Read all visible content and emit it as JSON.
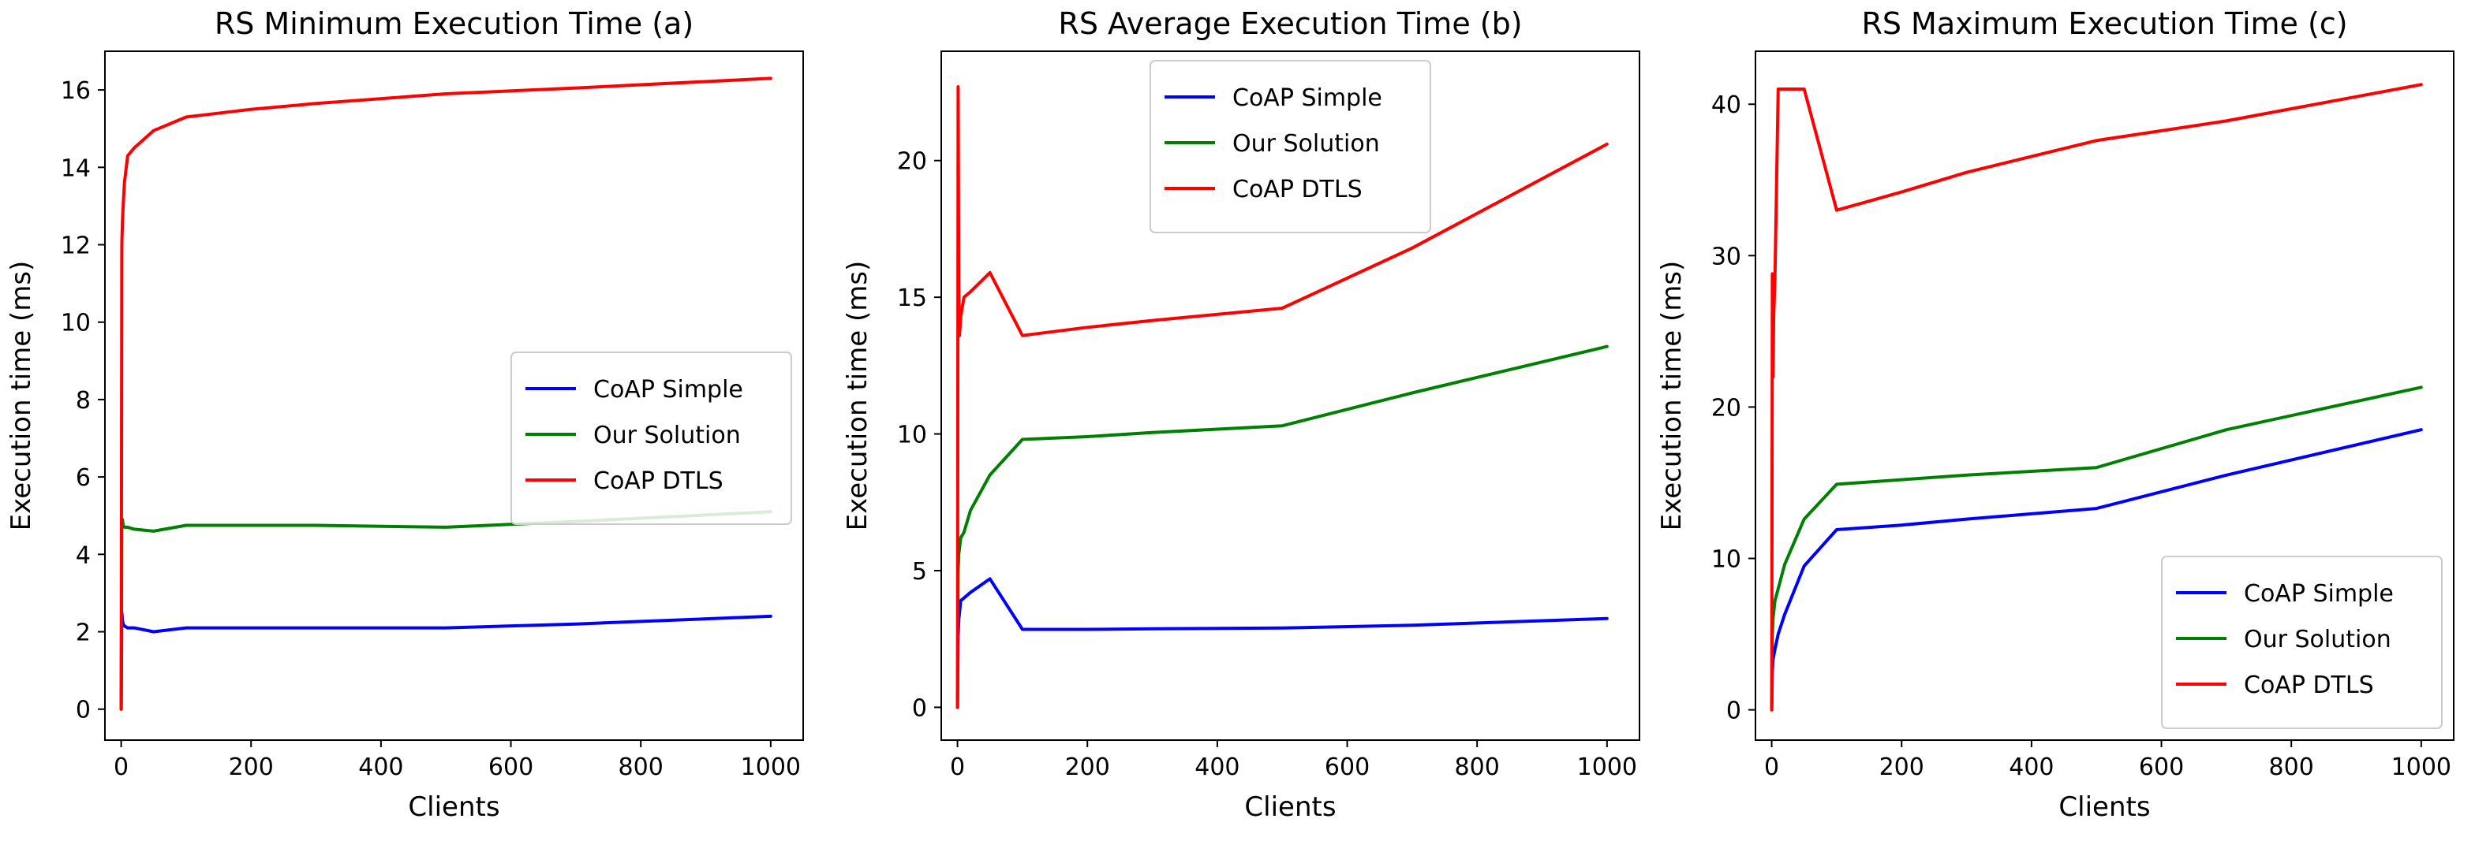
{
  "chart_data": [
    {
      "type": "line",
      "title": "RS Minimum Execution Time (a)",
      "xlabel": "Clients",
      "ylabel": "Execution time (ms)",
      "xlim": [
        -25,
        1050
      ],
      "ylim": [
        -0.8,
        17.0
      ],
      "xticks": [
        0,
        200,
        400,
        600,
        800,
        1000
      ],
      "xtick_labels": [
        "0",
        "200",
        "400",
        "600",
        "800",
        "1000"
      ],
      "yticks": [
        0,
        2,
        4,
        6,
        8,
        10,
        12,
        14,
        16
      ],
      "ytick_labels": [
        "0",
        "2",
        "4",
        "6",
        "8",
        "10",
        "12",
        "14",
        "16"
      ],
      "legend_position": "center-right",
      "series": [
        {
          "name": "CoAP Simple",
          "color": "#0000ff",
          "x": [
            0,
            1,
            2,
            3,
            5,
            10,
            20,
            50,
            100,
            200,
            300,
            500,
            700,
            1000
          ],
          "y": [
            0,
            2.5,
            2.3,
            2.2,
            2.15,
            2.1,
            2.1,
            2.0,
            2.1,
            2.1,
            2.1,
            2.1,
            2.2,
            2.4
          ]
        },
        {
          "name": "Our Solution",
          "color": "#008000",
          "x": [
            0,
            1,
            2,
            3,
            5,
            10,
            20,
            50,
            100,
            200,
            300,
            500,
            700,
            1000
          ],
          "y": [
            0,
            4.8,
            4.9,
            4.75,
            4.7,
            4.7,
            4.65,
            4.6,
            4.75,
            4.75,
            4.75,
            4.7,
            4.85,
            5.1
          ]
        },
        {
          "name": "CoAP DTLS",
          "color": "#ff0000",
          "x": [
            0,
            1,
            2,
            3,
            5,
            10,
            20,
            50,
            100,
            200,
            300,
            500,
            700,
            1000
          ],
          "y": [
            0,
            12.0,
            12.6,
            13.0,
            13.6,
            14.3,
            14.5,
            14.95,
            15.3,
            15.5,
            15.65,
            15.9,
            16.05,
            16.3
          ]
        }
      ]
    },
    {
      "type": "line",
      "title": "RS Average Execution Time  (b)",
      "xlabel": "Clients",
      "ylabel": "Execution time (ms)",
      "xlim": [
        -25,
        1050
      ],
      "ylim": [
        -1.2,
        24.0
      ],
      "xticks": [
        0,
        200,
        400,
        600,
        800,
        1000
      ],
      "xtick_labels": [
        "0",
        "200",
        "400",
        "600",
        "800",
        "1000"
      ],
      "yticks": [
        0,
        5,
        10,
        15,
        20
      ],
      "ytick_labels": [
        "0",
        "5",
        "10",
        "15",
        "20"
      ],
      "legend_position": "upper-center",
      "series": [
        {
          "name": "CoAP Simple",
          "color": "#0000ff",
          "x": [
            0,
            1,
            2,
            5,
            10,
            20,
            50,
            100,
            200,
            300,
            500,
            700,
            1000
          ],
          "y": [
            0,
            2.6,
            3.2,
            3.9,
            4.0,
            4.2,
            4.7,
            2.85,
            2.85,
            2.87,
            2.9,
            3.0,
            3.25
          ]
        },
        {
          "name": "Our Solution",
          "color": "#008000",
          "x": [
            0,
            1,
            2,
            5,
            10,
            20,
            50,
            100,
            200,
            300,
            500,
            700,
            1000
          ],
          "y": [
            0,
            5.0,
            5.6,
            6.2,
            6.4,
            7.2,
            8.5,
            9.8,
            9.9,
            10.05,
            10.3,
            11.5,
            13.2
          ]
        },
        {
          "name": "CoAP DTLS",
          "color": "#ff0000",
          "x": [
            0,
            1,
            2,
            3,
            5,
            10,
            20,
            50,
            100,
            200,
            300,
            500,
            700,
            1000
          ],
          "y": [
            0,
            22.7,
            15.5,
            13.6,
            14.3,
            15.0,
            15.2,
            15.9,
            13.6,
            13.9,
            14.15,
            14.6,
            16.8,
            20.6
          ]
        }
      ]
    },
    {
      "type": "line",
      "title": "RS Maximum Execution Time (c)",
      "xlabel": "Clients",
      "ylabel": "Execution time (ms)",
      "xlim": [
        -25,
        1050
      ],
      "ylim": [
        -2.0,
        43.5
      ],
      "xticks": [
        0,
        200,
        400,
        600,
        800,
        1000
      ],
      "xtick_labels": [
        "0",
        "200",
        "400",
        "600",
        "800",
        "1000"
      ],
      "yticks": [
        0,
        10,
        20,
        30,
        40
      ],
      "ytick_labels": [
        "0",
        "10",
        "20",
        "30",
        "40"
      ],
      "legend_position": "lower-right",
      "series": [
        {
          "name": "CoAP Simple",
          "color": "#0000ff",
          "x": [
            0,
            1,
            2,
            5,
            10,
            20,
            50,
            100,
            200,
            300,
            500,
            700,
            1000
          ],
          "y": [
            0,
            2.5,
            3.3,
            4.0,
            5.0,
            6.3,
            9.5,
            11.9,
            12.2,
            12.6,
            13.3,
            15.5,
            18.5
          ]
        },
        {
          "name": "Our Solution",
          "color": "#008000",
          "x": [
            0,
            1,
            2,
            5,
            10,
            20,
            50,
            100,
            200,
            300,
            500,
            700,
            1000
          ],
          "y": [
            0,
            5.0,
            6.0,
            7.2,
            8.0,
            9.6,
            12.6,
            14.9,
            15.2,
            15.5,
            16.0,
            18.5,
            21.3
          ]
        },
        {
          "name": "CoAP DTLS",
          "color": "#ff0000",
          "x": [
            0,
            1,
            2,
            3,
            5,
            10,
            20,
            50,
            100,
            200,
            300,
            500,
            700,
            1000
          ],
          "y": [
            0,
            28.8,
            22.0,
            26.0,
            28.5,
            41.0,
            41.0,
            41.0,
            33.0,
            34.2,
            35.5,
            37.6,
            38.9,
            41.3
          ]
        }
      ]
    }
  ]
}
